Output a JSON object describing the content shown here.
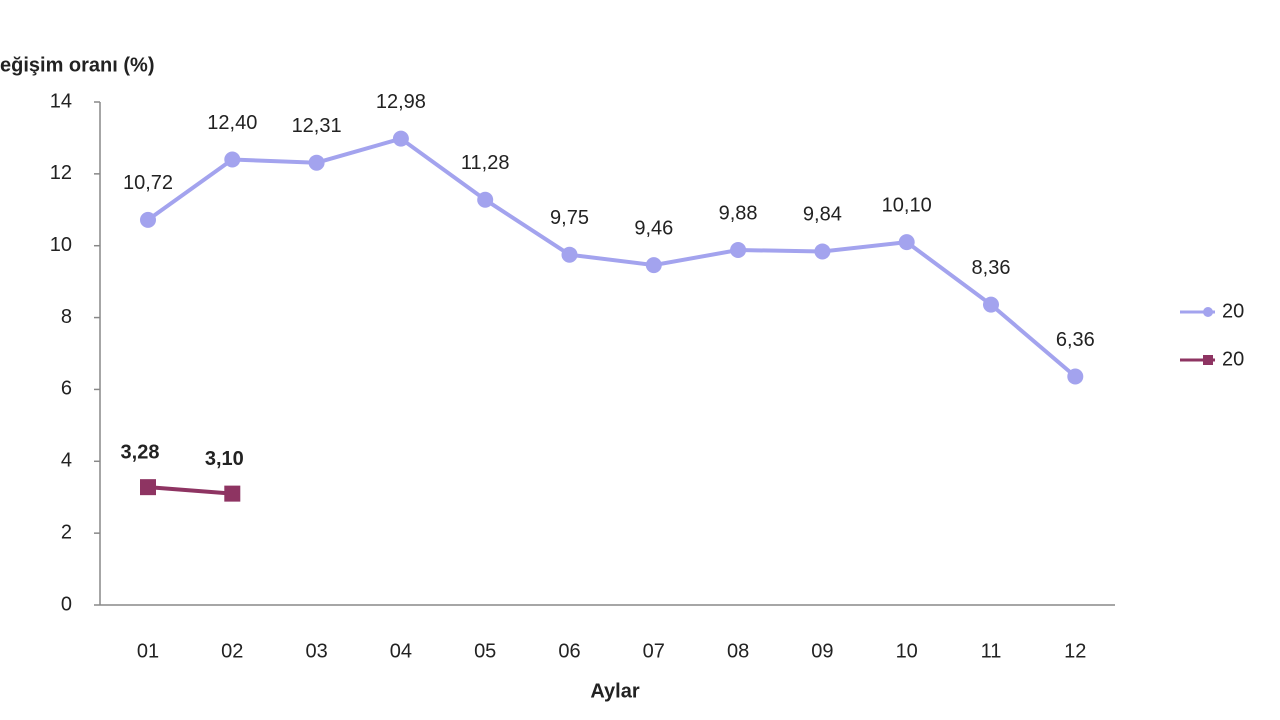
{
  "chart_data": {
    "type": "line",
    "y_axis_label": "eğişim oranı (%)",
    "x_axis_label": "Aylar",
    "categories": [
      "01",
      "02",
      "03",
      "04",
      "05",
      "06",
      "07",
      "08",
      "09",
      "10",
      "11",
      "12"
    ],
    "series": [
      {
        "name": "20",
        "color": "#a3a3ee",
        "marker": "circle",
        "values": [
          10.72,
          12.4,
          12.31,
          12.98,
          11.28,
          9.75,
          9.46,
          9.88,
          9.84,
          10.1,
          8.36,
          6.36
        ],
        "value_labels": [
          "10,72",
          "12,40",
          "12,31",
          "12,98",
          "11,28",
          "9,75",
          "9,46",
          "9,88",
          "9,84",
          "10,10",
          "8,36",
          "6,36"
        ]
      },
      {
        "name": "20",
        "color": "#8e3462",
        "marker": "square",
        "values": [
          3.28,
          3.1,
          null,
          null,
          null,
          null,
          null,
          null,
          null,
          null,
          null,
          null
        ],
        "value_labels": [
          "3,28",
          "3,10",
          null,
          null,
          null,
          null,
          null,
          null,
          null,
          null,
          null,
          null
        ]
      }
    ],
    "ylim": [
      0,
      14
    ],
    "yticks": [
      0,
      2,
      4,
      6,
      8,
      10,
      12,
      14
    ],
    "grid": false,
    "legend": "right"
  }
}
